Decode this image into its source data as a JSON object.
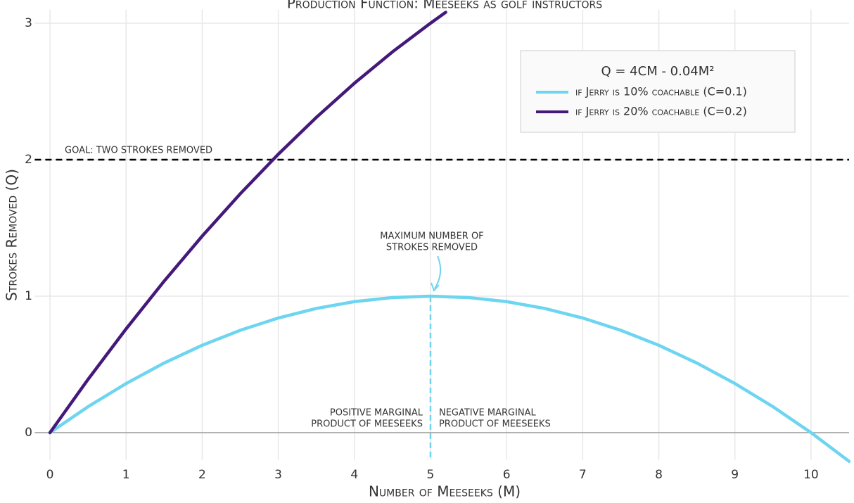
{
  "chart_data": {
    "type": "line",
    "title": "Production Function: Meeseeks as golf instructors",
    "x_label": "Number of Meeseeks (M)",
    "y_label": "Strokes Removed (Q)",
    "xlim": [
      -0.2,
      10.5
    ],
    "xticks": [
      0,
      1,
      2,
      3,
      4,
      5,
      6,
      7,
      8,
      9,
      10
    ],
    "ylim": [
      -0.2,
      3.1
    ],
    "yticks": [
      0,
      1,
      2,
      3
    ],
    "grid": true,
    "legend": {
      "title": "Q = 4CM - 0.04M²",
      "position": "top-right"
    },
    "series": [
      {
        "name": "if Jerry is 10% coachable (C=0.1)",
        "color": "#6dd5f0",
        "x": [
          0,
          0.5,
          1,
          1.5,
          2,
          2.5,
          3,
          3.5,
          4,
          4.5,
          5,
          5.5,
          6,
          6.5,
          7,
          7.5,
          8,
          8.5,
          9,
          9.5,
          10,
          10.5
        ],
        "values": [
          0,
          0.19,
          0.36,
          0.51,
          0.64,
          0.75,
          0.84,
          0.91,
          0.96,
          0.99,
          1,
          0.99,
          0.96,
          0.91,
          0.84,
          0.75,
          0.64,
          0.51,
          0.36,
          0.19,
          0,
          -0.21
        ]
      },
      {
        "name": "if Jerry is 20% coachable (C=0.2)",
        "color": "#44197a",
        "x": [
          0,
          0.5,
          1,
          1.5,
          2,
          2.5,
          3,
          3.5,
          4,
          4.5,
          5,
          5.2
        ],
        "values": [
          0,
          0.39,
          0.76,
          1.11,
          1.44,
          1.75,
          2.04,
          2.31,
          2.56,
          2.79,
          3,
          3.08
        ]
      }
    ],
    "goal_line": {
      "value": 2,
      "label": "GOAL: TWO STROKES REMOVED",
      "color": "#000000"
    },
    "max_line": {
      "x": 5,
      "y": 1,
      "color": "#6dd5f0",
      "label": [
        "MAXIMUM NUMBER OF",
        "STROKES REMOVED"
      ]
    },
    "left_note": [
      "POSITIVE MARGINAL",
      "PRODUCT OF MEESEEKS"
    ],
    "right_note": [
      "NEGATIVE MARGINAL",
      "PRODUCT OF MEESEEKS"
    ]
  }
}
